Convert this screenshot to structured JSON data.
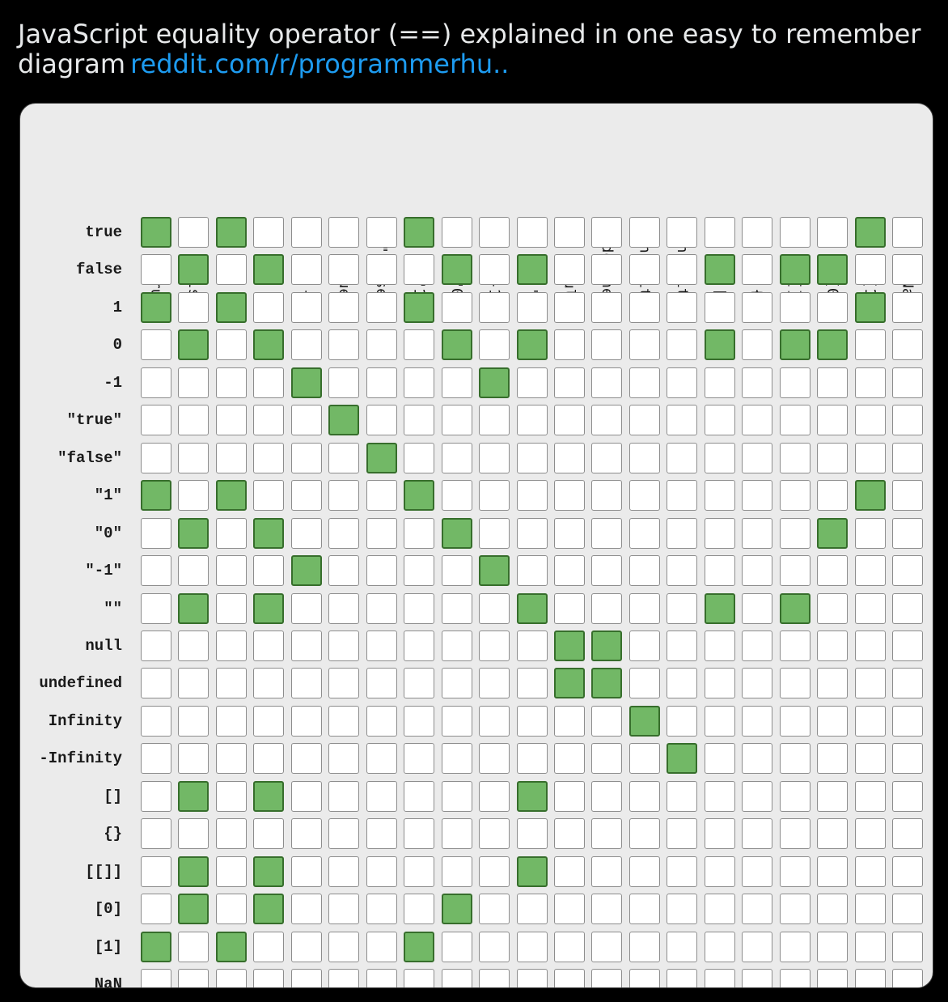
{
  "tweet": {
    "text": "JavaScript equality operator (==) explained in one easy to remember diagram",
    "link": "reddit.com/r/programmerhu.."
  },
  "colors": {
    "equal": "#72b866",
    "not_equal": "#ffffff"
  },
  "diagram": {
    "labels": [
      "true",
      "false",
      "1",
      "0",
      "-1",
      "\"true\"",
      "\"false\"",
      "\"1\"",
      "\"0\"",
      "\"-1\"",
      "\"\"",
      "null",
      "undefined",
      "Infinity",
      "-Infinity",
      "[]",
      "{}",
      "[[]]",
      "[0]",
      "[1]",
      "NaN"
    ],
    "matrix": [
      [
        1,
        0,
        1,
        0,
        0,
        0,
        0,
        1,
        0,
        0,
        0,
        0,
        0,
        0,
        0,
        0,
        0,
        0,
        0,
        1,
        0
      ],
      [
        0,
        1,
        0,
        1,
        0,
        0,
        0,
        0,
        1,
        0,
        1,
        0,
        0,
        0,
        0,
        1,
        0,
        1,
        1,
        0,
        0
      ],
      [
        1,
        0,
        1,
        0,
        0,
        0,
        0,
        1,
        0,
        0,
        0,
        0,
        0,
        0,
        0,
        0,
        0,
        0,
        0,
        1,
        0
      ],
      [
        0,
        1,
        0,
        1,
        0,
        0,
        0,
        0,
        1,
        0,
        1,
        0,
        0,
        0,
        0,
        1,
        0,
        1,
        1,
        0,
        0
      ],
      [
        0,
        0,
        0,
        0,
        1,
        0,
        0,
        0,
        0,
        1,
        0,
        0,
        0,
        0,
        0,
        0,
        0,
        0,
        0,
        0,
        0
      ],
      [
        0,
        0,
        0,
        0,
        0,
        1,
        0,
        0,
        0,
        0,
        0,
        0,
        0,
        0,
        0,
        0,
        0,
        0,
        0,
        0,
        0
      ],
      [
        0,
        0,
        0,
        0,
        0,
        0,
        1,
        0,
        0,
        0,
        0,
        0,
        0,
        0,
        0,
        0,
        0,
        0,
        0,
        0,
        0
      ],
      [
        1,
        0,
        1,
        0,
        0,
        0,
        0,
        1,
        0,
        0,
        0,
        0,
        0,
        0,
        0,
        0,
        0,
        0,
        0,
        1,
        0
      ],
      [
        0,
        1,
        0,
        1,
        0,
        0,
        0,
        0,
        1,
        0,
        0,
        0,
        0,
        0,
        0,
        0,
        0,
        0,
        1,
        0,
        0
      ],
      [
        0,
        0,
        0,
        0,
        1,
        0,
        0,
        0,
        0,
        1,
        0,
        0,
        0,
        0,
        0,
        0,
        0,
        0,
        0,
        0,
        0
      ],
      [
        0,
        1,
        0,
        1,
        0,
        0,
        0,
        0,
        0,
        0,
        1,
        0,
        0,
        0,
        0,
        1,
        0,
        1,
        0,
        0,
        0
      ],
      [
        0,
        0,
        0,
        0,
        0,
        0,
        0,
        0,
        0,
        0,
        0,
        1,
        1,
        0,
        0,
        0,
        0,
        0,
        0,
        0,
        0
      ],
      [
        0,
        0,
        0,
        0,
        0,
        0,
        0,
        0,
        0,
        0,
        0,
        1,
        1,
        0,
        0,
        0,
        0,
        0,
        0,
        0,
        0
      ],
      [
        0,
        0,
        0,
        0,
        0,
        0,
        0,
        0,
        0,
        0,
        0,
        0,
        0,
        1,
        0,
        0,
        0,
        0,
        0,
        0,
        0
      ],
      [
        0,
        0,
        0,
        0,
        0,
        0,
        0,
        0,
        0,
        0,
        0,
        0,
        0,
        0,
        1,
        0,
        0,
        0,
        0,
        0,
        0
      ],
      [
        0,
        1,
        0,
        1,
        0,
        0,
        0,
        0,
        0,
        0,
        1,
        0,
        0,
        0,
        0,
        0,
        0,
        0,
        0,
        0,
        0
      ],
      [
        0,
        0,
        0,
        0,
        0,
        0,
        0,
        0,
        0,
        0,
        0,
        0,
        0,
        0,
        0,
        0,
        0,
        0,
        0,
        0,
        0
      ],
      [
        0,
        1,
        0,
        1,
        0,
        0,
        0,
        0,
        0,
        0,
        1,
        0,
        0,
        0,
        0,
        0,
        0,
        0,
        0,
        0,
        0
      ],
      [
        0,
        1,
        0,
        1,
        0,
        0,
        0,
        0,
        1,
        0,
        0,
        0,
        0,
        0,
        0,
        0,
        0,
        0,
        0,
        0,
        0
      ],
      [
        1,
        0,
        1,
        0,
        0,
        0,
        0,
        1,
        0,
        0,
        0,
        0,
        0,
        0,
        0,
        0,
        0,
        0,
        0,
        0,
        0
      ],
      [
        0,
        0,
        0,
        0,
        0,
        0,
        0,
        0,
        0,
        0,
        0,
        0,
        0,
        0,
        0,
        0,
        0,
        0,
        0,
        0,
        0
      ]
    ]
  }
}
